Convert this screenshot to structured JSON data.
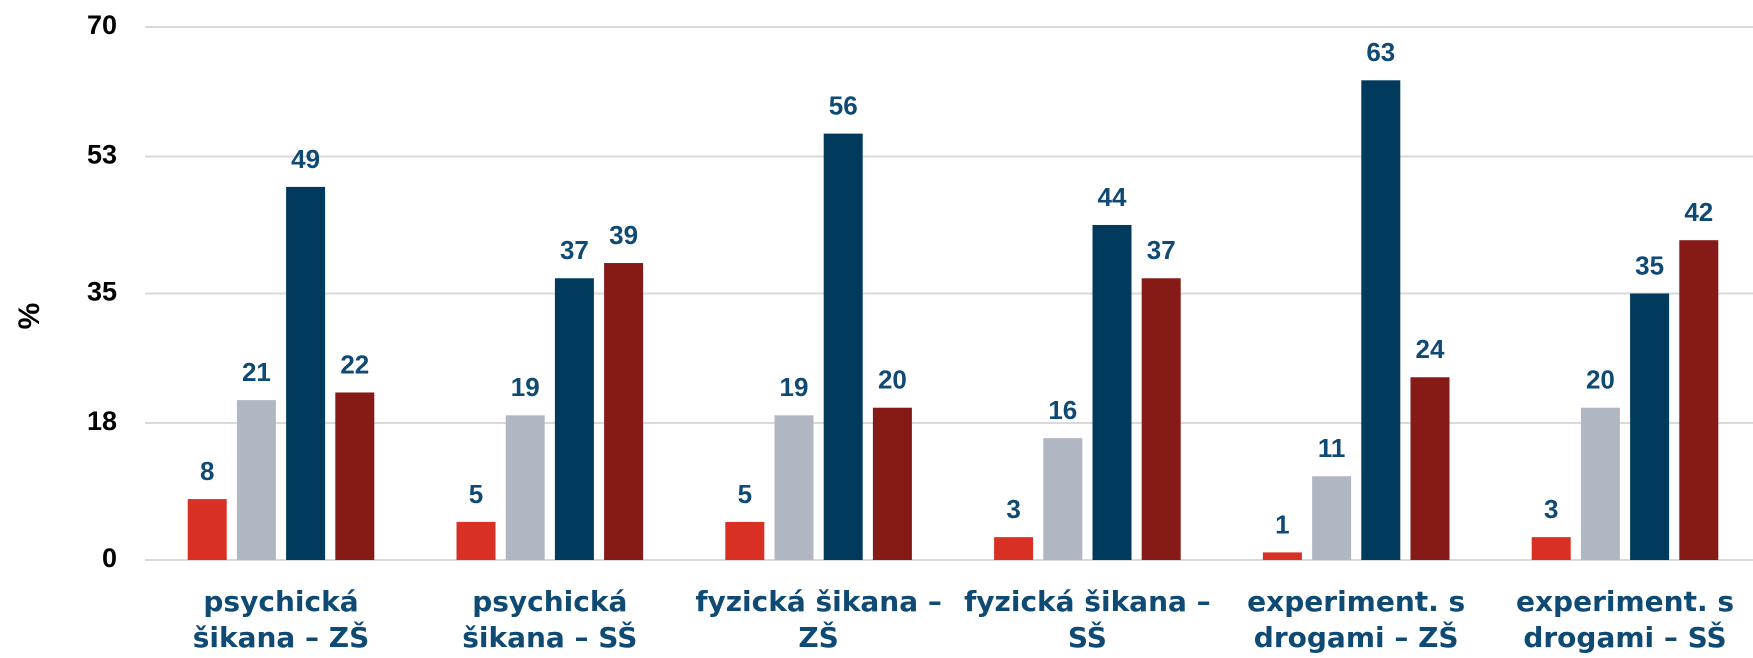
{
  "chart_data": {
    "type": "bar",
    "ylabel": "%",
    "categories": [
      "psychická šikana – ZŠ",
      "psychická šikana – SŠ",
      "fyzická šikana – ZŠ",
      "fyzická šikana – SŠ",
      "experiment. s drogami – ZŠ",
      "experiment. s drogami – SŠ"
    ],
    "series": [
      {
        "color": "#d93025",
        "values": [
          8,
          5,
          5,
          3,
          1,
          3
        ]
      },
      {
        "color": "#b0b7c3",
        "values": [
          21,
          19,
          19,
          16,
          11,
          20
        ]
      },
      {
        "color": "#003a5d",
        "values": [
          49,
          37,
          56,
          44,
          63,
          35
        ]
      },
      {
        "color": "#851a17",
        "values": [
          22,
          39,
          20,
          37,
          24,
          42
        ]
      }
    ],
    "ylim": [
      0,
      70
    ],
    "yticks": [
      0,
      18,
      35,
      53,
      70
    ],
    "grid": true,
    "value_label_color": "#0f4a74"
  }
}
